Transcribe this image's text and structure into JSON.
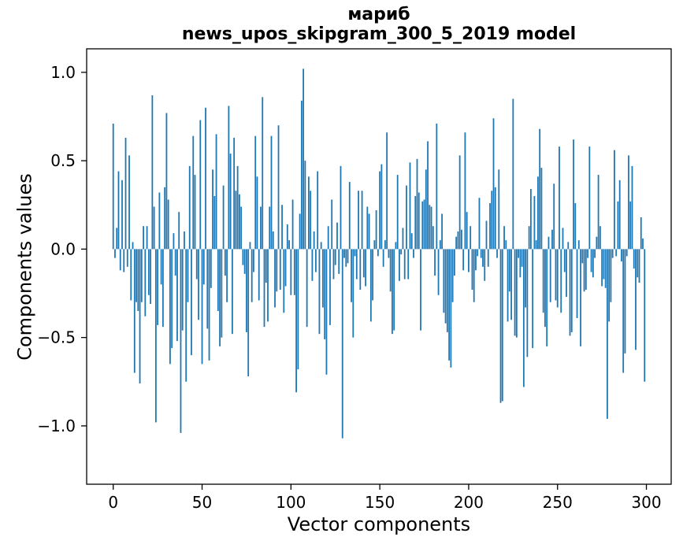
{
  "figure": {
    "title_line1": "мариб",
    "title_line2": "news_upos_skipgram_300_5_2019 model",
    "xlabel": "Vector components",
    "ylabel": "Components values",
    "background": "#ffffff"
  },
  "chart_data": {
    "type": "bar",
    "title": "мариб",
    "subtitle": "news_upos_skipgram_300_5_2019 model",
    "xlabel": "Vector components",
    "ylabel": "Components values",
    "bar_color": "#1f77b4",
    "spine_color": "#000000",
    "grid": false,
    "legend": null,
    "n_components": 300,
    "xlim": [
      -14.95,
      313.95
    ],
    "ylim": [
      -1.33,
      1.133
    ],
    "xticks": [
      0,
      50,
      100,
      150,
      200,
      250,
      300
    ],
    "xtick_labels": [
      "0",
      "50",
      "100",
      "150",
      "200",
      "250",
      "300"
    ],
    "yticks": [
      1.0,
      0.5,
      0.0,
      -0.5,
      -1.0
    ],
    "ytick_labels": [
      "1.0",
      "0.5",
      "0.0",
      "−0.5",
      "−1.0"
    ],
    "values": [
      0.71,
      -0.05,
      0.12,
      0.44,
      -0.12,
      0.39,
      -0.13,
      0.63,
      -0.1,
      0.53,
      -0.29,
      0.04,
      -0.7,
      -0.3,
      -0.35,
      -0.76,
      -0.3,
      0.13,
      -0.38,
      0.13,
      -0.26,
      -0.31,
      0.87,
      0.24,
      -0.98,
      -0.43,
      0.32,
      -0.2,
      -0.44,
      0.35,
      0.77,
      0.28,
      -0.65,
      -0.56,
      0.09,
      -0.15,
      -0.52,
      0.21,
      -1.04,
      -0.46,
      0.1,
      -0.75,
      -0.3,
      0.47,
      -0.6,
      0.64,
      0.42,
      -0.17,
      -0.4,
      0.73,
      -0.65,
      -0.2,
      0.8,
      -0.45,
      -0.63,
      -0.22,
      0.45,
      0.3,
      0.65,
      -0.35,
      -0.55,
      -0.5,
      0.36,
      -0.15,
      -0.3,
      0.81,
      0.54,
      -0.48,
      0.63,
      0.33,
      0.47,
      0.31,
      0.24,
      -0.09,
      -0.14,
      -0.47,
      -0.72,
      0.04,
      -0.3,
      -0.13,
      0.64,
      0.41,
      -0.29,
      0.24,
      0.86,
      -0.44,
      -0.19,
      -0.41,
      0.24,
      0.64,
      0.1,
      -0.33,
      -0.24,
      0.7,
      -0.23,
      0.25,
      -0.36,
      -0.21,
      0.14,
      0.05,
      -0.26,
      0.28,
      -0.26,
      -0.81,
      -0.68,
      0.2,
      0.84,
      1.02,
      0.5,
      -0.44,
      0.41,
      0.33,
      -0.18,
      0.1,
      -0.13,
      0.44,
      -0.48,
      0.04,
      -0.33,
      -0.51,
      -0.71,
      0.13,
      -0.43,
      0.28,
      -0.17,
      -0.09,
      0.15,
      -0.14,
      0.47,
      -1.07,
      -0.05,
      -0.1,
      -0.08,
      0.38,
      -0.3,
      -0.5,
      -0.04,
      -0.17,
      0.33,
      -0.23,
      0.33,
      -0.16,
      -0.21,
      0.24,
      0.2,
      -0.41,
      -0.29,
      0.05,
      0.22,
      -0.04,
      0.44,
      0.48,
      -0.1,
      0.05,
      0.66,
      -0.05,
      -0.24,
      -0.48,
      -0.46,
      0.04,
      0.42,
      -0.18,
      -0.03,
      0.12,
      -0.17,
      0.36,
      -0.17,
      0.49,
      0.09,
      -0.05,
      0.3,
      0.51,
      0.32,
      -0.46,
      0.27,
      0.28,
      0.45,
      0.61,
      0.25,
      0.24,
      0.13,
      -0.15,
      0.71,
      -0.26,
      0.05,
      0.2,
      -0.36,
      -0.42,
      -0.47,
      -0.63,
      -0.67,
      -0.3,
      -0.15,
      0.07,
      0.1,
      0.53,
      0.11,
      -0.12,
      0.66,
      0.21,
      -0.13,
      0.13,
      -0.23,
      -0.3,
      -0.12,
      -0.04,
      0.29,
      -0.05,
      -0.1,
      -0.18,
      0.16,
      -0.1,
      0.26,
      0.33,
      0.74,
      0.35,
      -0.05,
      0.45,
      -0.87,
      -0.86,
      0.13,
      0.05,
      -0.41,
      -0.24,
      -0.4,
      0.85,
      -0.49,
      -0.5,
      -0.05,
      -0.16,
      -0.1,
      -0.78,
      -0.33,
      -0.61,
      0.13,
      0.34,
      -0.56,
      0.3,
      0.05,
      0.41,
      0.68,
      0.46,
      -0.36,
      -0.44,
      -0.55,
      0.07,
      -0.3,
      0.11,
      0.37,
      -0.29,
      -0.33,
      0.58,
      -0.36,
      0.12,
      -0.13,
      -0.27,
      0.04,
      -0.49,
      -0.47,
      0.62,
      0.26,
      -0.39,
      0.05,
      -0.55,
      -0.08,
      -0.24,
      -0.23,
      -0.05,
      0.58,
      -0.13,
      -0.16,
      -0.05,
      0.07,
      0.42,
      0.13,
      -0.21,
      -0.17,
      -0.22,
      -0.96,
      -0.41,
      -0.3,
      -0.05,
      0.56,
      -0.04,
      0.27,
      0.39,
      -0.07,
      -0.7,
      -0.59,
      -0.04,
      0.53,
      0.27,
      0.47,
      -0.11,
      -0.57,
      -0.16,
      -0.19,
      0.18,
      0.06,
      -0.75
    ]
  }
}
